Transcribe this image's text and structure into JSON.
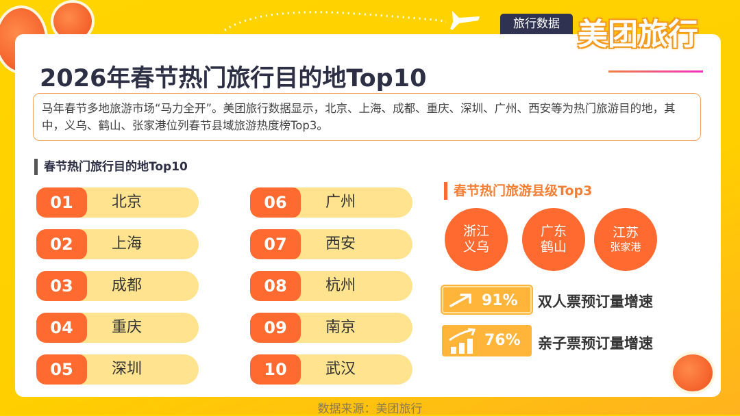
{
  "header": {
    "tag": "旅行数据",
    "brand": "美团旅行"
  },
  "title": "2026年春节热门旅行目的地Top10",
  "description": "马年春节多地旅游市场“马力全开”。美团旅行数据显示，北京、上海、成都、重庆、深圳、广州、西安等为热门旅游目的地，其中，义乌、鹤山、张家港位列春节县域旅游热度榜Top3。",
  "top10": {
    "heading": "春节热门旅行目的地Top10",
    "items": [
      {
        "rank": "01",
        "city": "北京"
      },
      {
        "rank": "02",
        "city": "上海"
      },
      {
        "rank": "03",
        "city": "成都"
      },
      {
        "rank": "04",
        "city": "重庆"
      },
      {
        "rank": "05",
        "city": "深圳"
      },
      {
        "rank": "06",
        "city": "广州"
      },
      {
        "rank": "07",
        "city": "西安"
      },
      {
        "rank": "08",
        "city": "杭州"
      },
      {
        "rank": "09",
        "city": "南京"
      },
      {
        "rank": "10",
        "city": "武汉"
      }
    ]
  },
  "county": {
    "heading": "春节热门旅游县级Top3",
    "items": [
      {
        "province": "浙江",
        "county": "义乌"
      },
      {
        "province": "广东",
        "county": "鹤山"
      },
      {
        "province": "江苏",
        "county": "张家港"
      }
    ]
  },
  "stats": [
    {
      "icon": "trend-arrow-icon",
      "value": "91%",
      "label": "双人票预订量增速"
    },
    {
      "icon": "growth-bars-icon",
      "value": "76%",
      "label": "亲子票预订量增速"
    }
  ],
  "footer": "数据来源：美团旅行",
  "colors": {
    "accent": "#FF6A30",
    "pill": "#FFE38F",
    "background": "#FFD400",
    "stat": "#FFB43A"
  }
}
